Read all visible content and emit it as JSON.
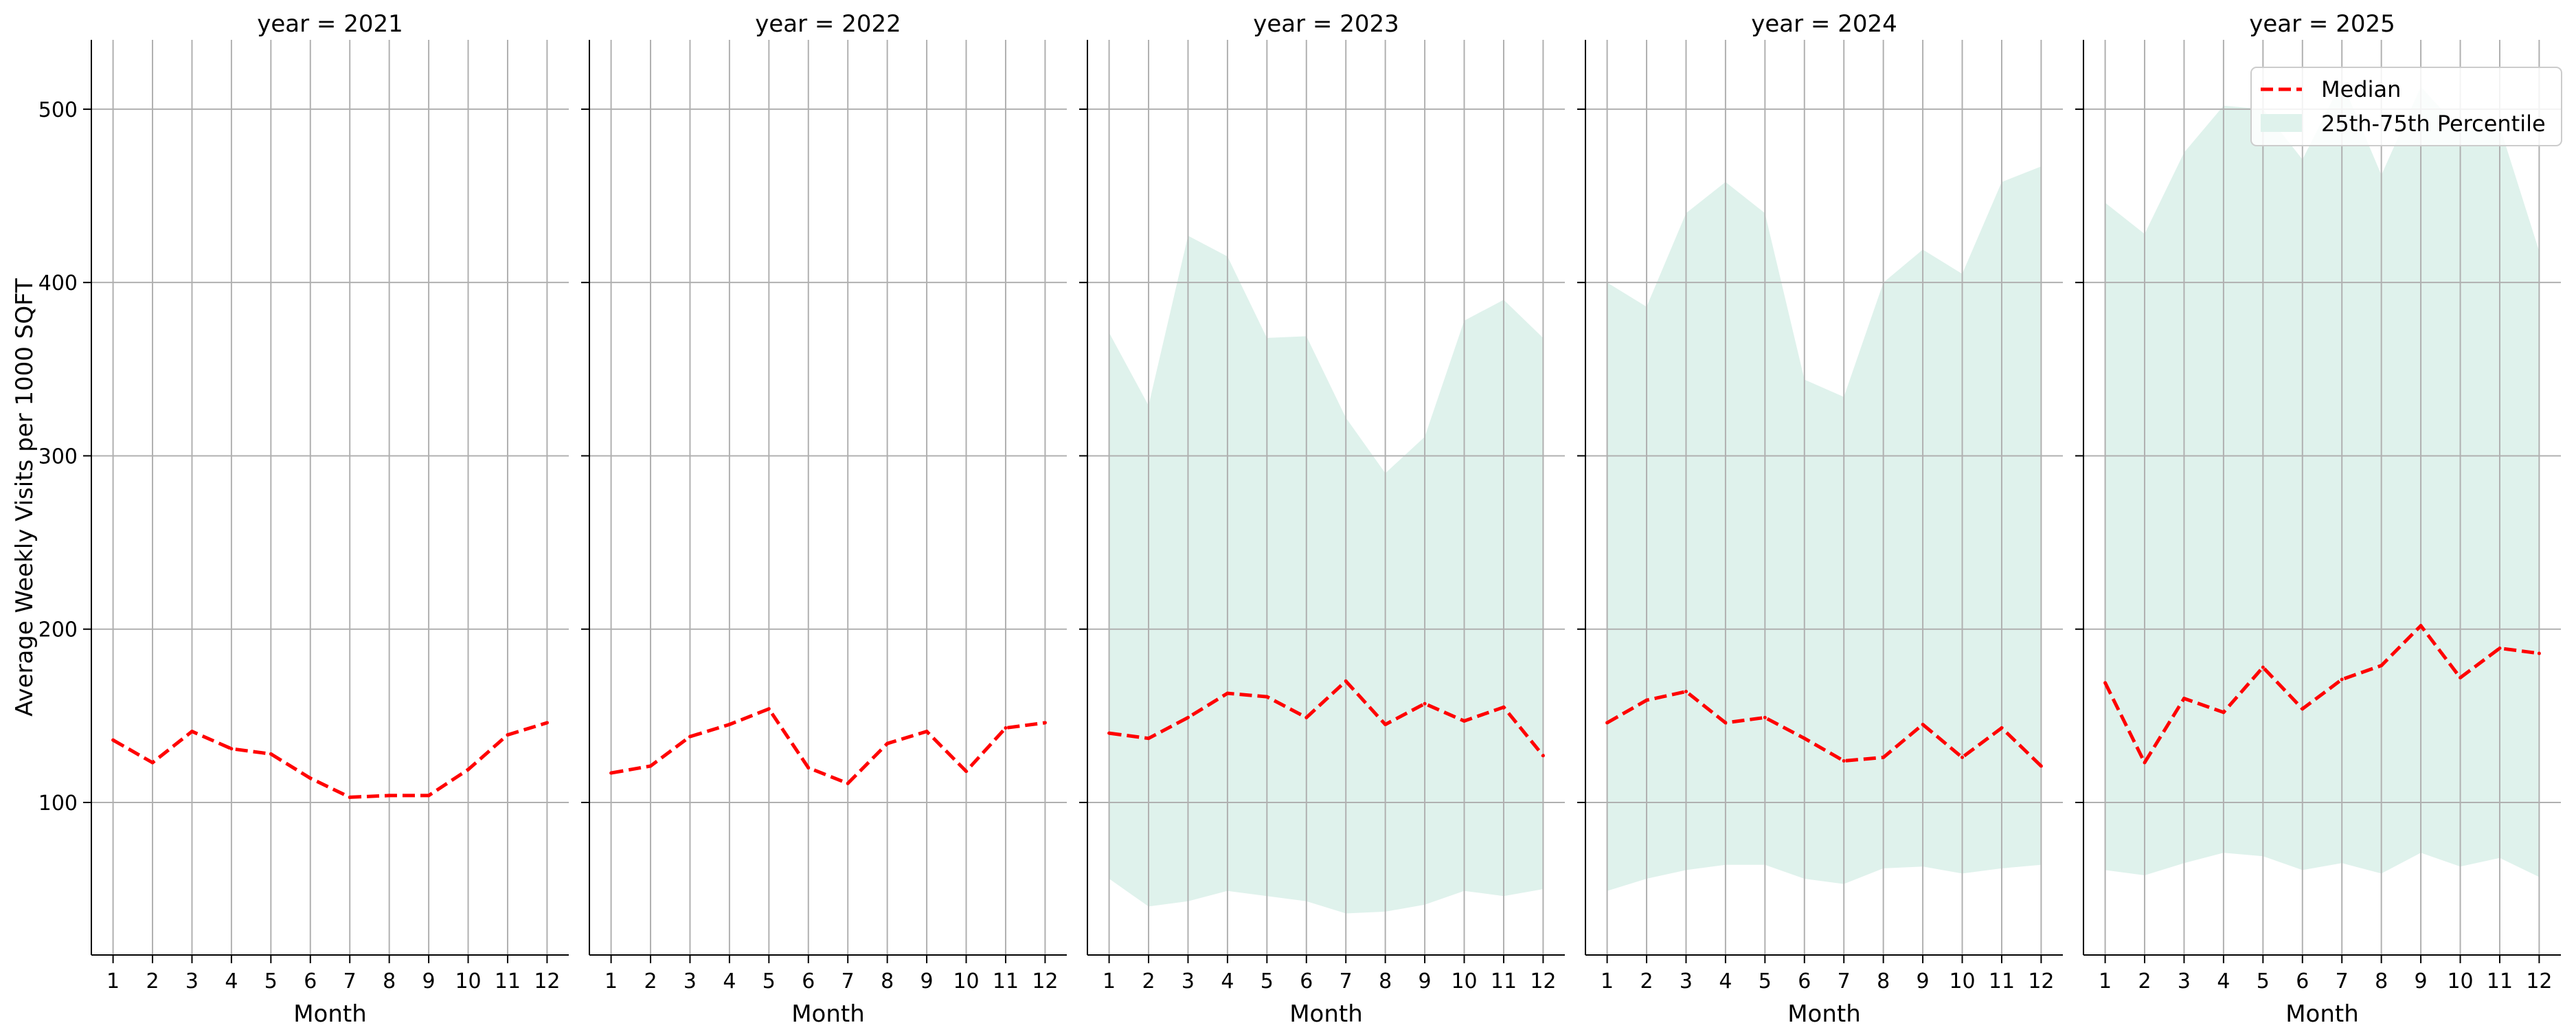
{
  "chart_data": {
    "type": "line",
    "ylabel": "Average Weekly Visits per 1000 SQFT",
    "xlabel": "Month",
    "ylim": [
      12,
      540
    ],
    "xlim": [
      0.45,
      12.55
    ],
    "y_ticks": [
      100,
      200,
      300,
      400,
      500
    ],
    "x_ticks": [
      1,
      2,
      3,
      4,
      5,
      6,
      7,
      8,
      9,
      10,
      11,
      12
    ],
    "grid": true,
    "shared_y": true,
    "legend": {
      "placement": "top-right",
      "panel": 5,
      "entries": [
        {
          "name": "Median",
          "style": "dashed-line",
          "color": "#ff0000"
        },
        {
          "name": "25th-75th Percentile",
          "style": "filled-area",
          "color": "#dff2ec"
        }
      ]
    },
    "panels": [
      {
        "title": "year = 2021",
        "median": [
          136,
          123,
          141,
          131,
          128,
          114,
          103,
          104,
          104,
          119,
          139,
          146
        ],
        "p25": null,
        "p75": null
      },
      {
        "title": "year = 2022",
        "median": [
          117,
          121,
          138,
          145,
          154,
          120,
          111,
          134,
          141,
          118,
          143,
          146
        ],
        "p25": null,
        "p75": null
      },
      {
        "title": "year = 2023",
        "median": [
          140,
          137,
          149,
          163,
          161,
          149,
          170,
          145,
          157,
          147,
          155,
          127
        ],
        "p25": [
          56,
          40,
          43,
          49,
          46,
          43,
          36,
          37,
          41,
          49,
          46,
          50
        ],
        "p75": [
          371,
          329,
          427,
          415,
          368,
          369,
          322,
          290,
          311,
          378,
          390,
          368
        ]
      },
      {
        "title": "year = 2024",
        "median": [
          146,
          159,
          164,
          146,
          149,
          137,
          124,
          126,
          145,
          126,
          143,
          121
        ],
        "p25": [
          49,
          56,
          61,
          64,
          64,
          56,
          53,
          62,
          63,
          59,
          62,
          64
        ],
        "p75": [
          400,
          386,
          440,
          458,
          440,
          344,
          334,
          400,
          419,
          405,
          458,
          467
        ]
      },
      {
        "title": "year = 2025",
        "median": [
          169,
          123,
          160,
          152,
          178,
          154,
          171,
          179,
          202,
          172,
          189,
          186
        ],
        "p25": [
          61,
          58,
          65,
          71,
          69,
          61,
          65,
          59,
          71,
          63,
          68,
          57
        ],
        "p75": [
          446,
          428,
          475,
          502,
          500,
          471,
          516,
          462,
          513,
          488,
          490,
          418
        ]
      }
    ],
    "colors": {
      "median": "#ff0000",
      "band": "#dff2ec",
      "grid": "#b0b0b0",
      "axis": "#000000"
    }
  }
}
